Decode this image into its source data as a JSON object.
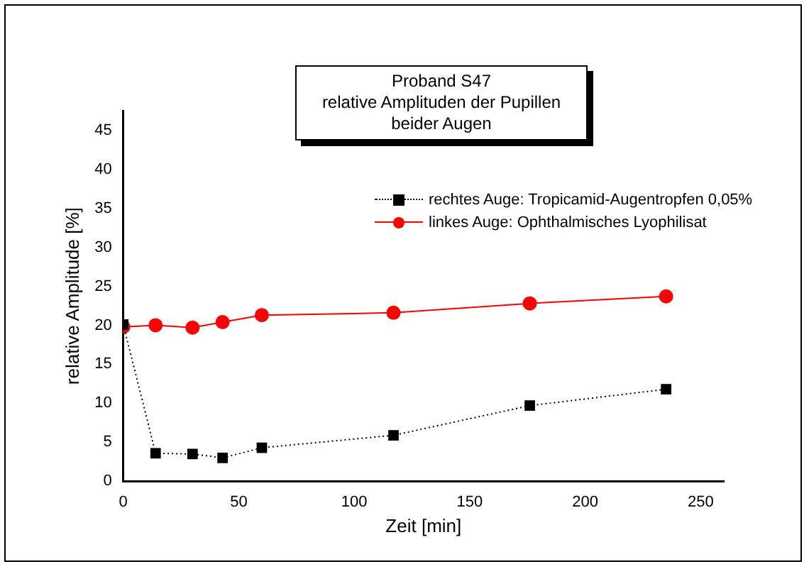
{
  "chart_data": {
    "type": "line",
    "title": "Proband S47\nrelative Amplituden der Pupillen\nbeider Augen",
    "xlabel": "Zeit [min]",
    "ylabel": "relative Amplitude [%]",
    "x": [
      0,
      14,
      30,
      43,
      60,
      117,
      176,
      235
    ],
    "series": [
      {
        "name": "rechtes Auge: Tropicamid-Augentropfen 0,05%",
        "color": "#000000",
        "marker": "square",
        "line_style": "dotted",
        "values": [
          20.1,
          3.6,
          3.5,
          3.0,
          4.3,
          5.9,
          9.7,
          11.8
        ]
      },
      {
        "name": "linkes Auge: Ophthalmisches Lyophilisat",
        "color": "#ff0000",
        "marker": "circle",
        "line_style": "solid",
        "values": [
          19.8,
          20.0,
          19.7,
          20.4,
          21.3,
          21.6,
          22.8,
          23.7
        ]
      }
    ],
    "xlim": [
      0,
      260
    ],
    "xticks": [
      0,
      50,
      100,
      150,
      200,
      250
    ],
    "ylim": [
      0,
      47.5
    ],
    "yticks": [
      0,
      5,
      10,
      15,
      20,
      25,
      30,
      35,
      40,
      45
    ],
    "grid": false,
    "legend": "top right"
  }
}
